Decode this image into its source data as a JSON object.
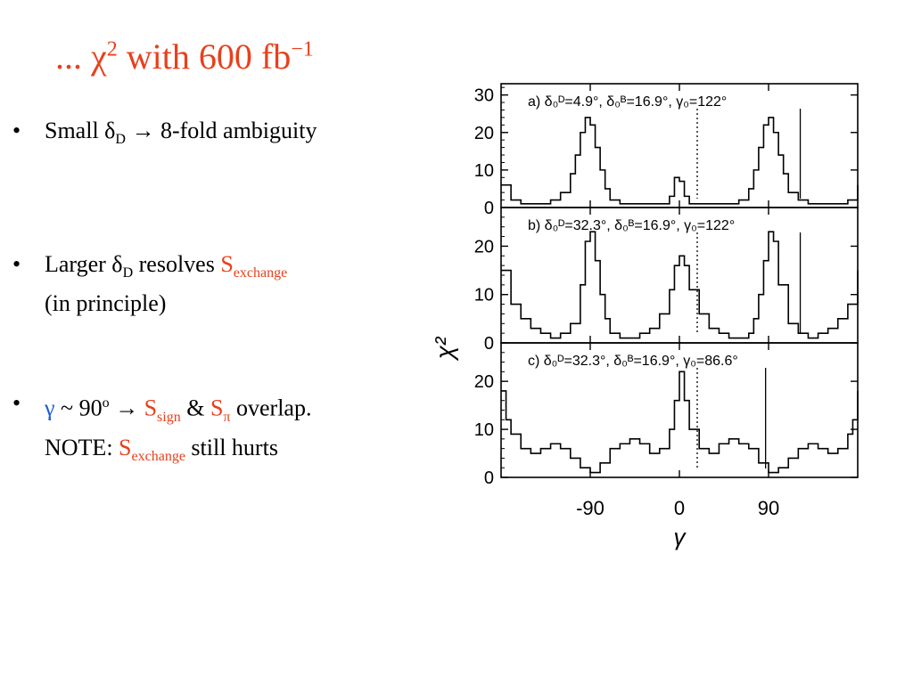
{
  "slide": {
    "title_prefix": "... χ",
    "title_sup": "2",
    "title_mid": " with  600 fb",
    "title_sup2": "−1"
  },
  "bullets": [
    {
      "bullet": "•",
      "b0_pre": "Small δ",
      "b0_sub": "D",
      "b0_post": " → 8-fold ambiguity"
    },
    {
      "bullet": "•",
      "b1_pre": "Larger δ",
      "b1_sub": "D",
      "b1_mid": " resolves ",
      "b1_s": "S",
      "b1_s_sub": "exchange",
      "b1_line2": "(in principle)"
    },
    {
      "bullet": "•",
      "b2_gamma": "γ",
      "b2_a": " ~ 90",
      "b2_sup": "o",
      "b2_b": " → ",
      "b2_s1": "S",
      "b2_s1_sub": "sign",
      "b2_amp": " & ",
      "b2_s2": "S",
      "b2_s2_sub": "π",
      "b2_c": " overlap.",
      "b2_note": "NOTE: ",
      "b2_s3": "S",
      "b2_s3_sub": "exchange",
      "b2_end": " still hurts"
    }
  ],
  "colors": {
    "accent": "#e8401c",
    "blue": "#1b5bd8"
  },
  "chart_data": [
    {
      "type": "line",
      "panel_label": "a) δ₀ᴰ=4.9°, δ₀ᴮ=16.9°, γ₀=122°",
      "ylabel": "χ²",
      "y_ticks": [
        "0",
        "10",
        "20",
        "30"
      ],
      "ylim": [
        0,
        33
      ],
      "xlim": [
        -180,
        180
      ],
      "x": [
        -180,
        -170,
        -160,
        -150,
        -140,
        -130,
        -120,
        -110,
        -105,
        -100,
        -95,
        -90,
        -85,
        -80,
        -75,
        -70,
        -60,
        -50,
        -40,
        -30,
        -20,
        -10,
        -5,
        0,
        5,
        10,
        20,
        30,
        40,
        50,
        60,
        70,
        75,
        80,
        85,
        90,
        95,
        100,
        105,
        110,
        120,
        130,
        140,
        150,
        160,
        170,
        180
      ],
      "y": [
        6,
        2,
        1,
        1,
        1,
        2,
        4,
        9,
        14,
        20,
        24,
        22,
        16,
        10,
        5,
        2,
        1,
        1,
        1,
        1,
        1,
        3,
        8,
        7,
        3,
        1,
        1,
        1,
        1,
        1,
        2,
        5,
        10,
        16,
        22,
        24,
        20,
        14,
        9,
        4,
        2,
        1,
        1,
        1,
        1,
        2,
        6
      ],
      "markers": [
        {
          "x": 18,
          "style": "dotted"
        },
        {
          "x": 122,
          "style": "solid"
        }
      ]
    },
    {
      "type": "line",
      "panel_label": "b) δ₀ᴰ=32.3°, δ₀ᴮ=16.9°, γ₀=122°",
      "y_ticks": [
        "0",
        "10",
        "20"
      ],
      "ylim": [
        0,
        28
      ],
      "xlim": [
        -180,
        180
      ],
      "x": [
        -180,
        -170,
        -160,
        -150,
        -140,
        -130,
        -120,
        -110,
        -100,
        -95,
        -90,
        -85,
        -80,
        -75,
        -70,
        -60,
        -50,
        -40,
        -30,
        -20,
        -10,
        -5,
        0,
        5,
        10,
        20,
        30,
        40,
        50,
        60,
        70,
        75,
        80,
        85,
        90,
        95,
        100,
        110,
        120,
        130,
        140,
        150,
        160,
        170,
        180
      ],
      "y": [
        15,
        8,
        5,
        3,
        2,
        1,
        2,
        4,
        12,
        21,
        23,
        17,
        10,
        5,
        2,
        1,
        1,
        2,
        3,
        6,
        11,
        16,
        18,
        16,
        11,
        6,
        3,
        2,
        1,
        1,
        2,
        5,
        10,
        17,
        23,
        21,
        12,
        4,
        2,
        1,
        2,
        3,
        5,
        8,
        15
      ],
      "markers": [
        {
          "x": 18,
          "style": "dotted"
        },
        {
          "x": 122,
          "style": "solid"
        }
      ]
    },
    {
      "type": "line",
      "panel_label": "c) δ₀ᴰ=32.3°, δ₀ᴮ=16.9°, γ₀=86.6°",
      "y_ticks": [
        "0",
        "10",
        "20"
      ],
      "ylim": [
        0,
        28
      ],
      "xlim": [
        -180,
        180
      ],
      "x_ticks": [
        "-90",
        "0",
        "90"
      ],
      "xlabel": "γ",
      "x": [
        -180,
        -175,
        -170,
        -160,
        -150,
        -140,
        -130,
        -120,
        -110,
        -100,
        -90,
        -80,
        -70,
        -60,
        -50,
        -40,
        -30,
        -20,
        -10,
        -5,
        0,
        5,
        10,
        20,
        30,
        40,
        50,
        60,
        70,
        80,
        90,
        100,
        110,
        120,
        130,
        140,
        150,
        160,
        170,
        175,
        180
      ],
      "y": [
        18,
        12,
        9,
        6,
        5,
        6,
        7,
        6,
        4,
        2,
        1,
        3,
        6,
        7,
        8,
        7,
        5,
        6,
        10,
        16,
        22,
        16,
        10,
        6,
        5,
        7,
        8,
        7,
        6,
        3,
        1,
        2,
        4,
        6,
        7,
        6,
        5,
        6,
        9,
        12,
        18
      ],
      "markers": [
        {
          "x": 18,
          "style": "dotted"
        },
        {
          "x": 87,
          "style": "solid"
        }
      ]
    }
  ]
}
